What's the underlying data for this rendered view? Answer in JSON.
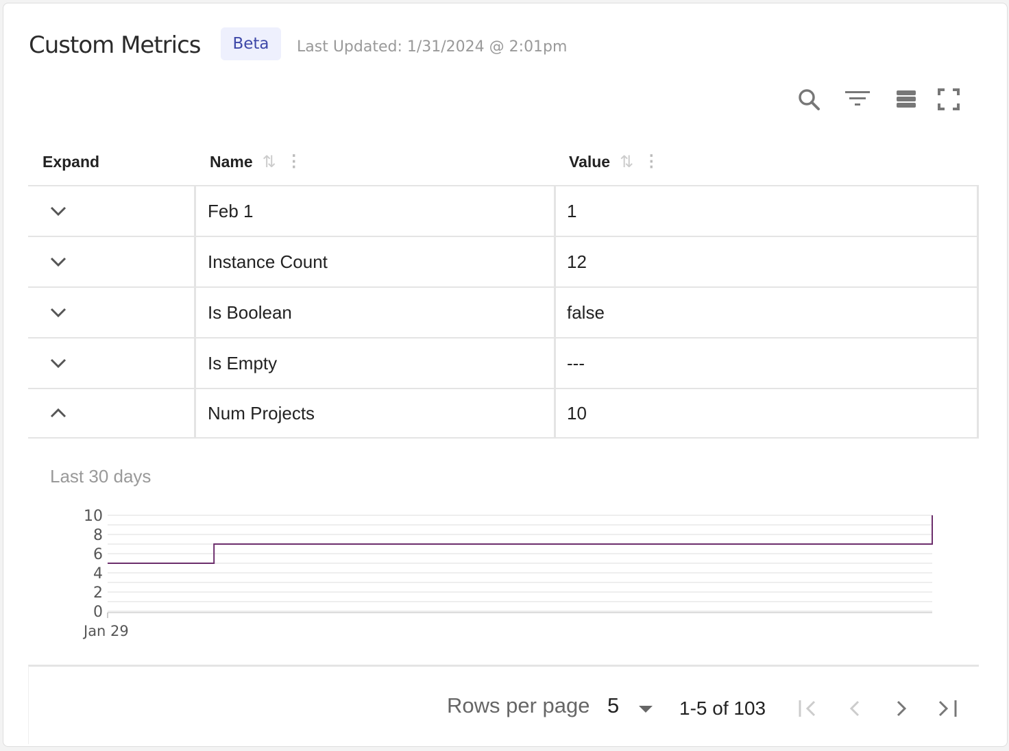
{
  "header": {
    "title": "Custom Metrics",
    "badge": "Beta",
    "last_updated": "Last Updated: 1/31/2024 @ 2:01pm"
  },
  "toolbar": {
    "icons": [
      "search-icon",
      "filter-icon",
      "density-icon",
      "fullscreen-icon"
    ]
  },
  "table": {
    "columns": [
      "Expand",
      "Name",
      "Value"
    ],
    "rows": [
      {
        "name": "Feb 1",
        "value": "1",
        "expanded": false
      },
      {
        "name": "Instance Count",
        "value": "12",
        "expanded": false
      },
      {
        "name": "Is Boolean",
        "value": "false",
        "expanded": false
      },
      {
        "name": "Is Empty",
        "value": "---",
        "expanded": false
      },
      {
        "name": "Num Projects",
        "value": "10",
        "expanded": true
      }
    ]
  },
  "detail": {
    "label": "Last 30 days"
  },
  "chart_data": {
    "type": "line",
    "step": true,
    "color": "#6b2d6b",
    "xlim": [
      "2024-01-29 00:00",
      "2024-01-31 14:01"
    ],
    "ylim": [
      0,
      10
    ],
    "yticks": [
      "0",
      "2",
      "4",
      "6",
      "8",
      "10"
    ],
    "xticks": [
      "Jan 29"
    ],
    "grid": true,
    "points": [
      {
        "x": "2024-01-29 00:00",
        "y": 5
      },
      {
        "x": "2024-01-29 08:00",
        "y": 7
      },
      {
        "x": "2024-01-31 14:01",
        "y": 10
      }
    ]
  },
  "pagination": {
    "rows_per_page_label": "Rows per page",
    "rows_per_page": "5",
    "range": "1-5 of 103"
  }
}
